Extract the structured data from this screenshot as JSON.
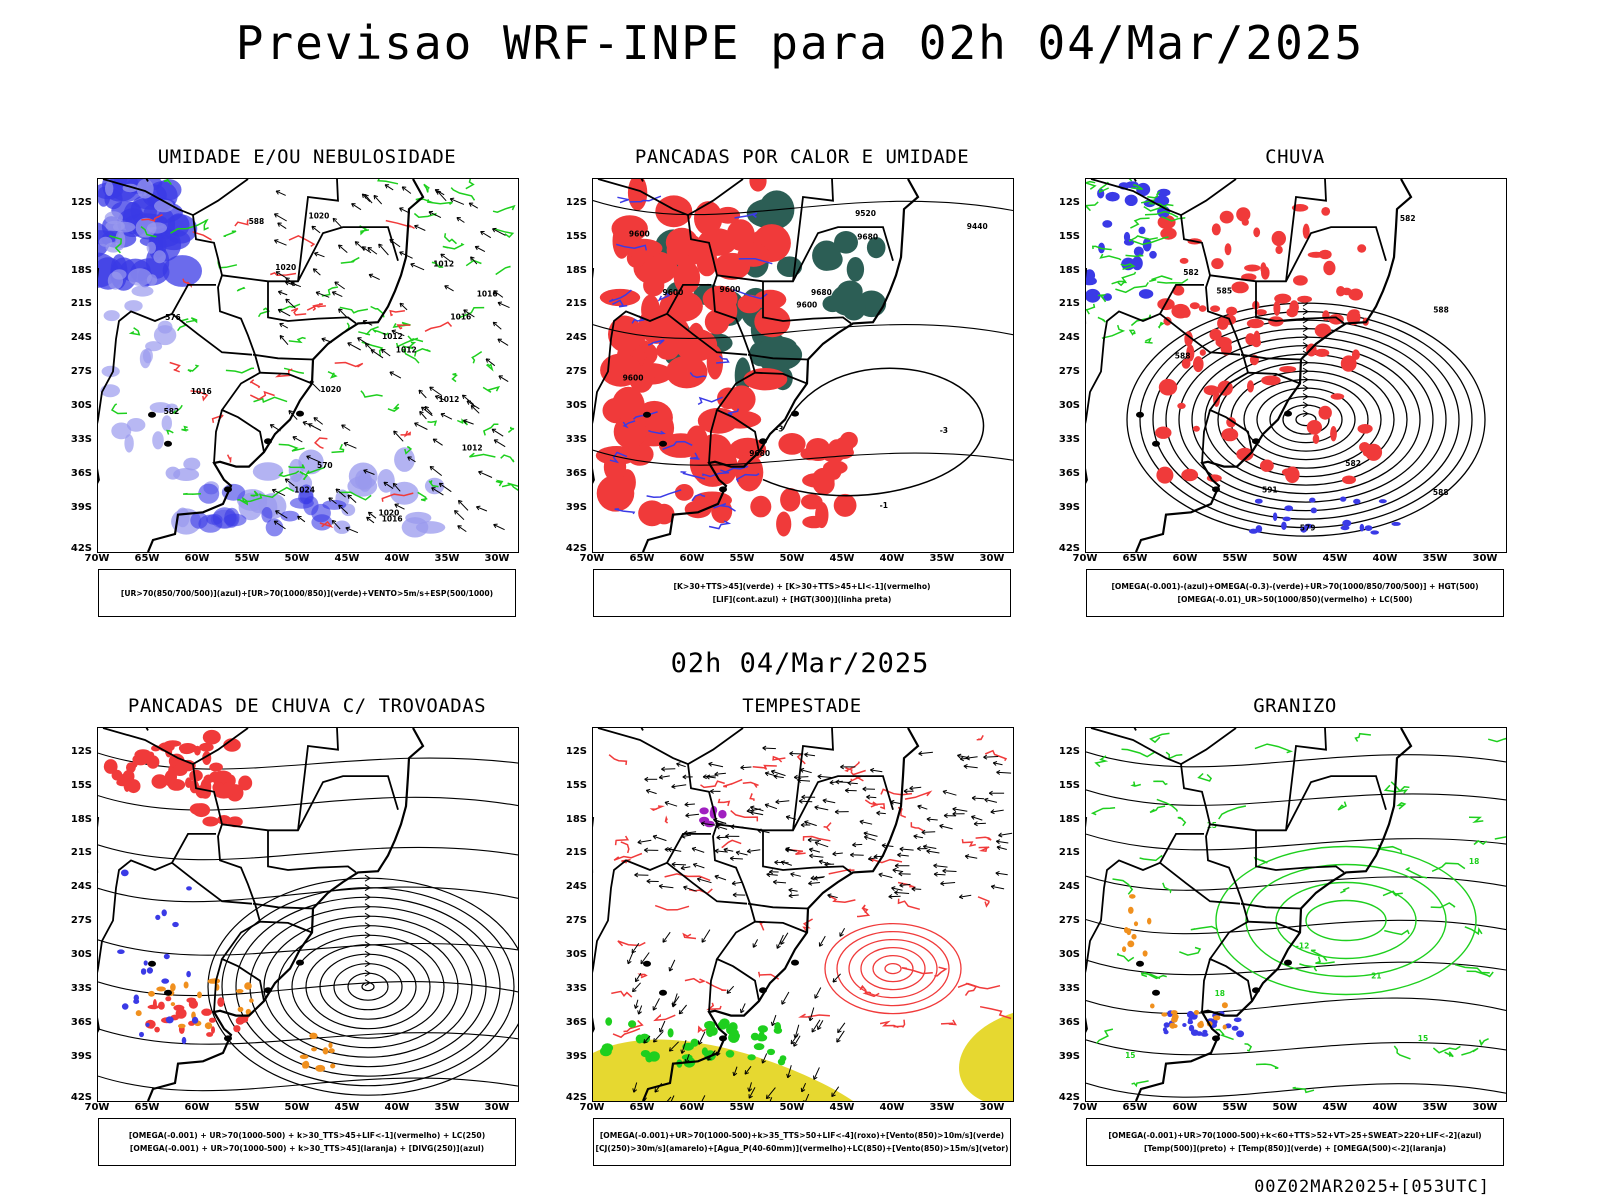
{
  "title": "Previsao WRF-INPE  para 02h 04/Mar/2025",
  "mid_label": "02h 04/Mar/2025",
  "footer": "00Z02MAR2025+[053UTC]",
  "lat_labels": [
    "12S",
    "15S",
    "18S",
    "21S",
    "24S",
    "27S",
    "30S",
    "33S",
    "36S",
    "39S",
    "42S"
  ],
  "lon_labels": [
    "70W",
    "65W",
    "60W",
    "55W",
    "50W",
    "45W",
    "40W",
    "35W",
    "30W"
  ],
  "panels": [
    {
      "title": "UMIDADE E/OU NEBULOSIDADE",
      "legend": [
        "[UR>70(850/700/500)](azul)+[UR>70(1000/850)](verde)+VENTO>5m/s+ESP(500/1000)"
      ]
    },
    {
      "title": "PANCADAS POR CALOR E UMIDADE",
      "legend": [
        "[K>30+TTS>45](verde) + [K>30+TTS>45+LI<-1](vermelho)",
        "[LIF](cont.azul) + [HGT(300)](linha preta)"
      ]
    },
    {
      "title": "CHUVA",
      "legend": [
        "[OMEGA(-0.001)-(azul)+OMEGA(-0.3)-(verde)+UR>70(1000/850/700/500)] + HGT(500)",
        "[OMEGA(-0.01)_UR>50(1000/850)(vermelho) + LC(500)"
      ]
    },
    {
      "title": "PANCADAS DE CHUVA C/ TROVOADAS",
      "legend": [
        "[OMEGA(-0.001) + UR>70(1000-500) + k>30_TTS>45+LIF<-1](vermelho) + LC(250)",
        "[OMEGA(-0.001) + UR>70(1000-500) + k>30_TTS>45](laranja) + [DIVG(250)](azul)"
      ]
    },
    {
      "title": "TEMPESTADE",
      "legend": [
        "[OMEGA(-0.001)+UR>70(1000-500)+k>35_TTS>50+LIF<-4](roxo)+[Vento(850)>10m/s](verde)",
        "[CJ(250)>30m/s](amarelo)+[Agua_P(40-60mm)](vermelho)+LC(850)+[Vento(850)>15m/s](vetor)"
      ]
    },
    {
      "title": "GRANIZO",
      "legend": [
        "[OMEGA(-0.001)+UR>70(1000-500)+k<60+TTS>52+VT>25+SWEAT>220+LIF<-2](azul)",
        "[Temp(500)](preto) + [Temp(850)](verde) + [OMEGA(500)<-2](laranja)"
      ]
    }
  ],
  "contour_labels": {
    "p1": [
      "1012",
      "1012",
      "1012",
      "1016",
      "1020",
      "1020",
      "1016",
      "1016",
      "1020",
      "1024",
      "1020",
      "1012",
      "1012",
      "1016",
      "570",
      "576",
      "582",
      "588"
    ],
    "p2": [
      "9600",
      "9600",
      "9680",
      "9680",
      "9520",
      "9440",
      "9600",
      "9600",
      "9680",
      "9600",
      "-3",
      "-3",
      "-1"
    ],
    "p3": [
      "582",
      "588",
      "588",
      "591",
      "588",
      "582",
      "585",
      "582",
      "579"
    ],
    "p6": [
      "15",
      "15",
      "15",
      "18",
      "18",
      "21",
      "-12"
    ]
  },
  "colors": {
    "blue": "#3a3ae6",
    "lightblue": "#9a9aee",
    "green": "#1ecf1e",
    "red": "#f03a3a",
    "darkteal": "#2c5e55",
    "orange": "#f0901e",
    "purple": "#a020c0",
    "yellow": "#e6d830",
    "black": "#000000"
  }
}
